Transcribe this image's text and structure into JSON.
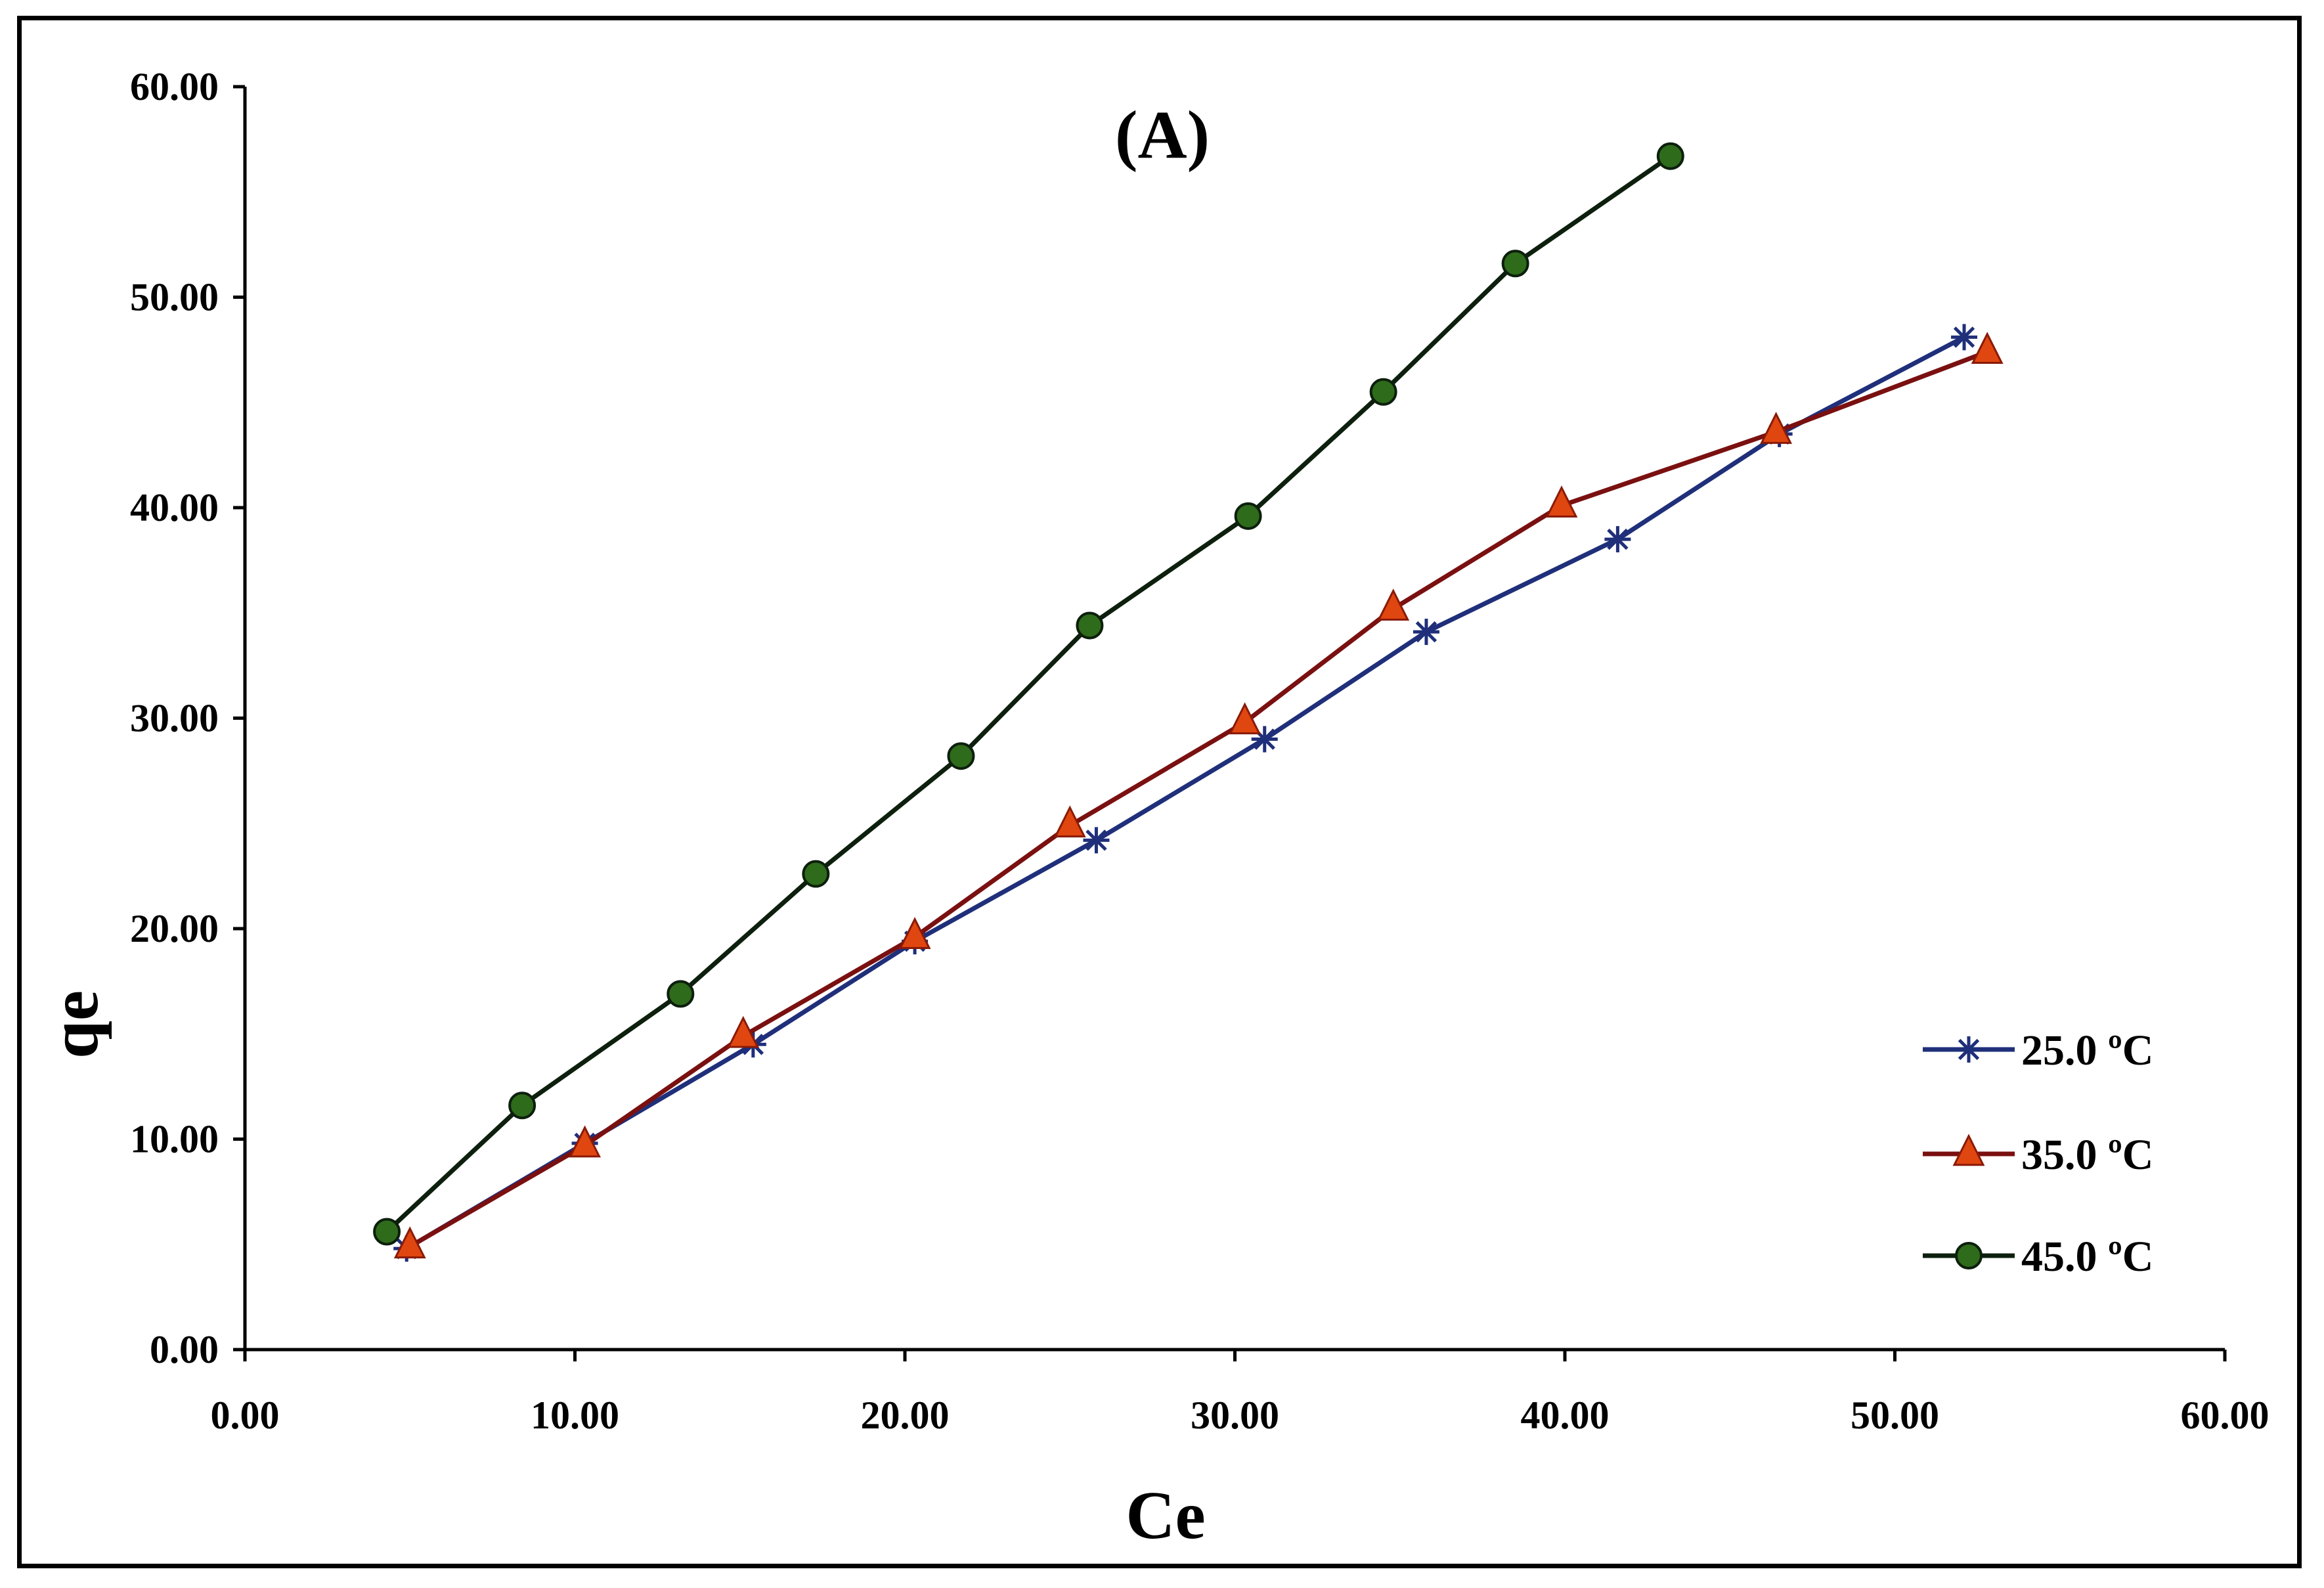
{
  "chart_data": {
    "type": "line",
    "title": "(A)",
    "xlabel": "Ce",
    "ylabel": "qe",
    "xlim": [
      0,
      60
    ],
    "ylim": [
      0,
      60
    ],
    "xticks": [
      0,
      10,
      20,
      30,
      40,
      50,
      60
    ],
    "yticks": [
      0,
      10,
      20,
      30,
      40,
      50,
      60
    ],
    "xtick_labels": [
      "0.00",
      "10.00",
      "20.00",
      "30.00",
      "40.00",
      "50.00",
      "60.00"
    ],
    "ytick_labels": [
      "0.00",
      "10.00",
      "20.00",
      "30.00",
      "40.00",
      "50.00",
      "60.00"
    ],
    "grid": false,
    "legend_position": "right",
    "series": [
      {
        "name": "25.0 ºC",
        "color": "#1f2f7a",
        "marker": "star",
        "x": [
          4.9,
          10.3,
          15.4,
          20.3,
          25.8,
          30.9,
          35.8,
          41.6,
          46.5,
          52.1
        ],
        "y": [
          4.8,
          9.8,
          14.5,
          19.4,
          24.2,
          29.0,
          34.1,
          38.5,
          43.5,
          48.1
        ]
      },
      {
        "name": "35.0 ºC",
        "color": "#7a1010",
        "marker": "triangle",
        "marker_color": "#e0460f",
        "x": [
          5.0,
          10.3,
          15.1,
          20.3,
          25.0,
          30.3,
          34.8,
          39.9,
          46.4,
          52.8
        ],
        "y": [
          4.9,
          9.7,
          14.9,
          19.6,
          24.9,
          29.8,
          35.2,
          40.1,
          43.6,
          47.4
        ]
      },
      {
        "name": "45.0 ºC",
        "color": "#0d1f0d",
        "marker": "circle",
        "marker_color": "#2e6b1a",
        "x": [
          4.3,
          8.4,
          13.2,
          17.3,
          21.7,
          25.6,
          30.4,
          34.5,
          38.5,
          43.2
        ],
        "y": [
          5.6,
          11.6,
          16.9,
          22.6,
          28.2,
          34.4,
          39.6,
          45.5,
          51.6,
          56.7
        ]
      }
    ]
  }
}
